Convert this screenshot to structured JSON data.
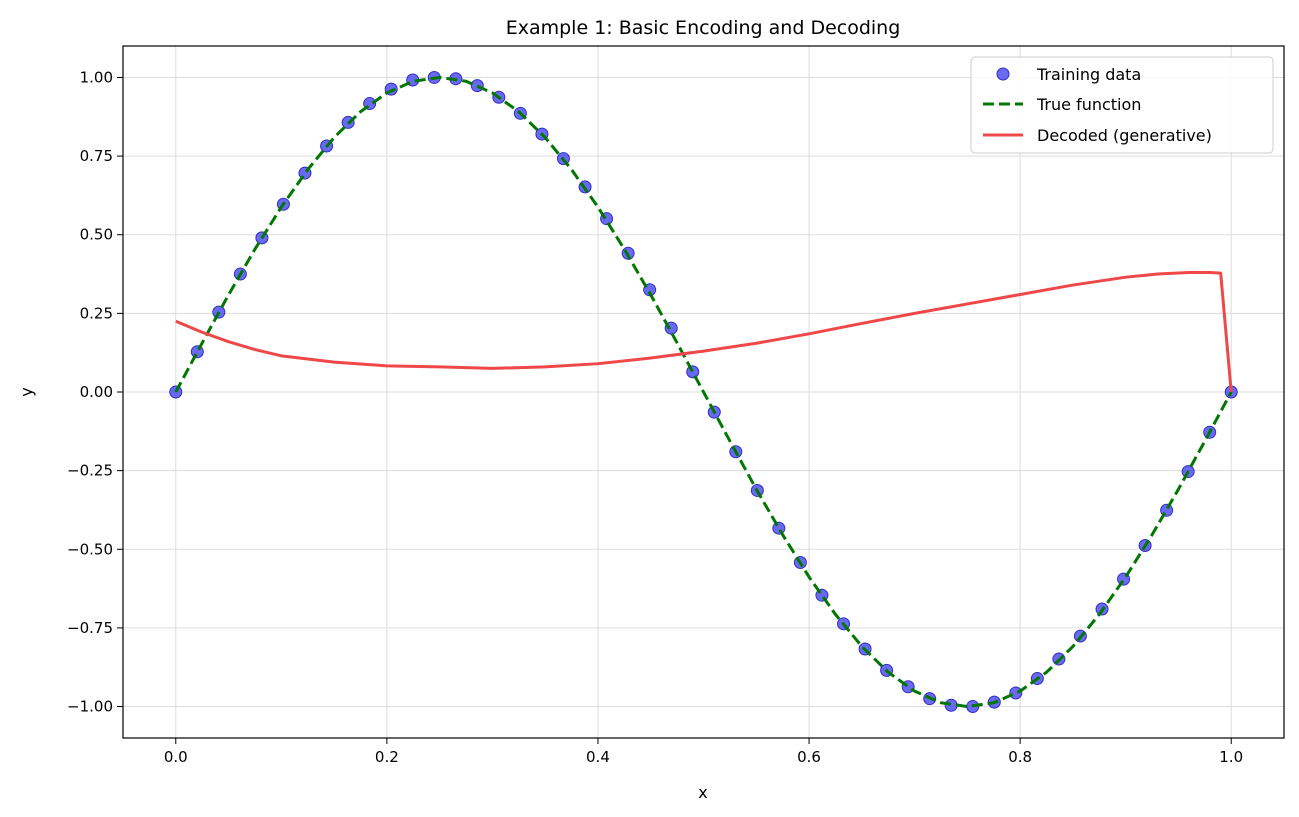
{
  "chart_data": {
    "type": "line",
    "title": "Example 1: Basic Encoding and Decoding",
    "xlabel": "x",
    "ylabel": "y",
    "xlim": [
      -0.05,
      1.05
    ],
    "ylim": [
      -1.1,
      1.1
    ],
    "xticks": [
      0.0,
      0.2,
      0.4,
      0.6,
      0.8,
      1.0
    ],
    "xtick_labels": [
      "0.0",
      "0.2",
      "0.4",
      "0.6",
      "0.8",
      "1.0"
    ],
    "yticks": [
      -1.0,
      -0.75,
      -0.5,
      -0.25,
      0.0,
      0.25,
      0.5,
      0.75,
      1.0
    ],
    "ytick_labels": [
      "−1.00",
      "−0.75",
      "−0.50",
      "−0.25",
      "0.00",
      "0.25",
      "0.50",
      "0.75",
      "1.00"
    ],
    "grid": true,
    "legend_position": "top-right",
    "series": [
      {
        "name": "Training data",
        "kind": "scatter",
        "color": "#4444ee",
        "x": [
          0.0,
          0.0204,
          0.0408,
          0.0612,
          0.0816,
          0.102,
          0.1224,
          0.1429,
          0.1633,
          0.1837,
          0.2041,
          0.2245,
          0.2449,
          0.2653,
          0.2857,
          0.3061,
          0.3265,
          0.3469,
          0.3673,
          0.3878,
          0.4082,
          0.4286,
          0.449,
          0.4694,
          0.4898,
          0.5102,
          0.5306,
          0.551,
          0.5714,
          0.5918,
          0.6122,
          0.6327,
          0.6531,
          0.6735,
          0.6939,
          0.7143,
          0.7347,
          0.7551,
          0.7755,
          0.7959,
          0.8163,
          0.8367,
          0.8571,
          0.8776,
          0.898,
          0.9184,
          0.9388,
          0.9592,
          0.9796,
          1.0
        ],
        "y": [
          0.0,
          0.128,
          0.254,
          0.375,
          0.49,
          0.597,
          0.696,
          0.782,
          0.857,
          0.917,
          0.963,
          0.992,
          1.0,
          0.996,
          0.974,
          0.937,
          0.886,
          0.82,
          0.742,
          0.652,
          0.551,
          0.441,
          0.325,
          0.203,
          0.064,
          -0.064,
          -0.19,
          -0.313,
          -0.433,
          -0.542,
          -0.646,
          -0.737,
          -0.817,
          -0.885,
          -0.937,
          -0.975,
          -0.996,
          -1.0,
          -0.986,
          -0.957,
          -0.911,
          -0.849,
          -0.776,
          -0.69,
          -0.595,
          -0.488,
          -0.376,
          -0.253,
          -0.128,
          0.0
        ]
      },
      {
        "name": "True function",
        "kind": "line",
        "dash": "dashed",
        "color": "#007700",
        "function": "sin(2*pi*x)",
        "x": [
          0.0,
          0.025,
          0.05,
          0.075,
          0.1,
          0.125,
          0.15,
          0.175,
          0.2,
          0.225,
          0.25,
          0.275,
          0.3,
          0.325,
          0.35,
          0.375,
          0.4,
          0.425,
          0.45,
          0.475,
          0.5,
          0.525,
          0.55,
          0.575,
          0.6,
          0.625,
          0.65,
          0.675,
          0.7,
          0.725,
          0.75,
          0.775,
          0.8,
          0.825,
          0.85,
          0.875,
          0.9,
          0.925,
          0.95,
          0.975,
          1.0
        ],
        "y": [
          0.0,
          0.156,
          0.309,
          0.454,
          0.588,
          0.707,
          0.809,
          0.891,
          0.951,
          0.988,
          1.0,
          0.988,
          0.951,
          0.891,
          0.809,
          0.707,
          0.588,
          0.454,
          0.309,
          0.156,
          0.0,
          -0.156,
          -0.309,
          -0.454,
          -0.588,
          -0.707,
          -0.809,
          -0.891,
          -0.951,
          -0.988,
          -1.0,
          -0.988,
          -0.951,
          -0.891,
          -0.809,
          -0.707,
          -0.588,
          -0.454,
          -0.309,
          -0.156,
          0.0
        ]
      },
      {
        "name": "Decoded (generative)",
        "kind": "line",
        "dash": "solid",
        "color": "#f04848",
        "x": [
          0.0,
          0.025,
          0.05,
          0.075,
          0.1,
          0.15,
          0.2,
          0.25,
          0.3,
          0.35,
          0.4,
          0.45,
          0.5,
          0.55,
          0.6,
          0.65,
          0.7,
          0.75,
          0.8,
          0.85,
          0.9,
          0.93,
          0.96,
          0.98,
          0.99,
          1.0
        ],
        "y": [
          0.225,
          0.19,
          0.16,
          0.135,
          0.115,
          0.095,
          0.083,
          0.08,
          0.075,
          0.08,
          0.09,
          0.108,
          0.13,
          0.155,
          0.185,
          0.218,
          0.25,
          0.28,
          0.31,
          0.34,
          0.365,
          0.375,
          0.38,
          0.38,
          0.378,
          0.0
        ]
      }
    ]
  }
}
